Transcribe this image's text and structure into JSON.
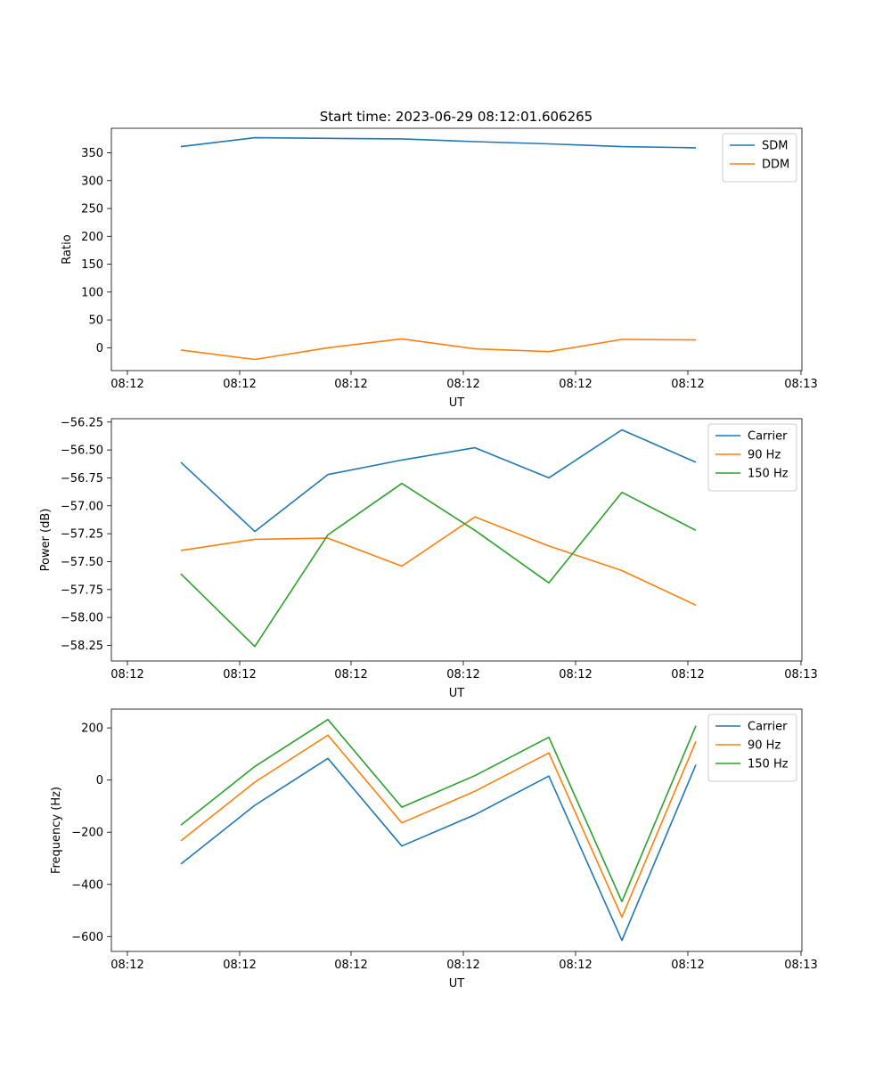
{
  "figure": {
    "title": "Start time: 2023-06-29 08:12:01.606265"
  },
  "chart_data": [
    {
      "type": "line",
      "xlabel": "UT",
      "ylabel": "Ratio",
      "x_ticks": [
        "08:12",
        "08:12",
        "08:12",
        "08:12",
        "08:12",
        "08:12",
        "08:13"
      ],
      "y_ticks": [
        0,
        50,
        100,
        150,
        200,
        250,
        300,
        350
      ],
      "ylim": [
        -41,
        394
      ],
      "grid": false,
      "legend_position": "top-right",
      "series": [
        {
          "name": "SDM",
          "color": "#1f77b4",
          "values": [
            361,
            377,
            376,
            375,
            370,
            366,
            361,
            359
          ]
        },
        {
          "name": "DDM",
          "color": "#ff7f0e",
          "values": [
            -4,
            -21,
            0,
            16,
            -2,
            -7,
            15,
            14
          ]
        }
      ]
    },
    {
      "type": "line",
      "xlabel": "UT",
      "ylabel": "Power (dB)",
      "x_ticks": [
        "08:12",
        "08:12",
        "08:12",
        "08:12",
        "08:12",
        "08:12",
        "08:13"
      ],
      "y_ticks": [
        -58.25,
        -58.0,
        -57.75,
        -57.5,
        -57.25,
        -57.0,
        -56.75,
        -56.5,
        -56.25
      ],
      "ylim": [
        -58.39,
        -56.22
      ],
      "grid": false,
      "legend_position": "top-right",
      "series": [
        {
          "name": "Carrier",
          "color": "#1f77b4",
          "values": [
            -56.61,
            -57.23,
            -56.72,
            -56.59,
            -56.48,
            -56.75,
            -56.32,
            -56.61
          ]
        },
        {
          "name": "90 Hz",
          "color": "#ff7f0e",
          "values": [
            -57.4,
            -57.3,
            -57.29,
            -57.54,
            -57.1,
            -57.36,
            -57.58,
            -57.89
          ]
        },
        {
          "name": "150 Hz",
          "color": "#2ca02c",
          "values": [
            -57.61,
            -58.26,
            -57.26,
            -56.8,
            -57.22,
            -57.69,
            -56.88,
            -57.22
          ]
        }
      ]
    },
    {
      "type": "line",
      "xlabel": "UT",
      "ylabel": "Frequency (Hz)",
      "x_ticks": [
        "08:12",
        "08:12",
        "08:12",
        "08:12",
        "08:12",
        "08:12",
        "08:13"
      ],
      "y_ticks": [
        -600,
        -400,
        -200,
        0,
        200
      ],
      "ylim": [
        -657,
        272
      ],
      "grid": false,
      "legend_position": "top-right",
      "series": [
        {
          "name": "Carrier",
          "color": "#1f77b4",
          "values": [
            -322,
            -97,
            83,
            -253,
            -133,
            15,
            -615,
            59
          ]
        },
        {
          "name": "90 Hz",
          "color": "#ff7f0e",
          "values": [
            -233,
            -8,
            172,
            -164,
            -43,
            104,
            -526,
            148
          ]
        },
        {
          "name": "150 Hz",
          "color": "#2ca02c",
          "values": [
            -173,
            52,
            232,
            -104,
            17,
            164,
            -466,
            208
          ]
        }
      ]
    }
  ]
}
